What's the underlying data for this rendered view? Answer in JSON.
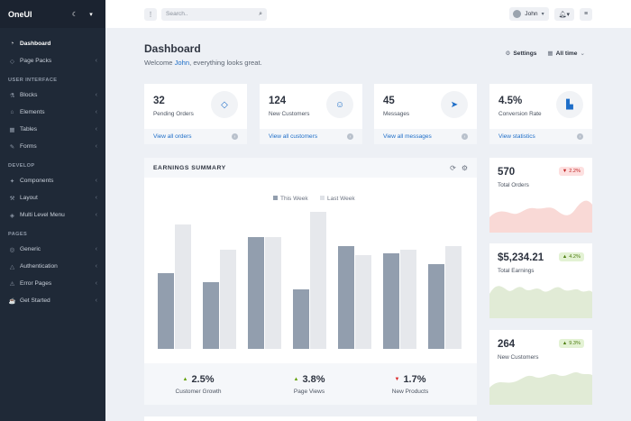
{
  "app": {
    "brand": "OneUI"
  },
  "sidebar": {
    "items_top": [
      {
        "label": "Dashboard",
        "icon": "speedometer-icon",
        "active": true
      },
      {
        "label": "Page Packs",
        "icon": "layers-icon"
      }
    ],
    "section_ui": "USER INTERFACE",
    "items_ui": [
      {
        "label": "Blocks",
        "icon": "flask-icon"
      },
      {
        "label": "Elements",
        "icon": "rocket-icon"
      },
      {
        "label": "Tables",
        "icon": "table-icon"
      },
      {
        "label": "Forms",
        "icon": "form-icon"
      }
    ],
    "section_dev": "DEVELOP",
    "items_dev": [
      {
        "label": "Components",
        "icon": "wand-icon"
      },
      {
        "label": "Layout",
        "icon": "wrench-icon"
      },
      {
        "label": "Multi Level Menu",
        "icon": "puzzle-icon"
      }
    ],
    "section_pages": "PAGES",
    "items_pages": [
      {
        "label": "Generic",
        "icon": "layer-group-icon"
      },
      {
        "label": "Authentication",
        "icon": "lock-icon"
      },
      {
        "label": "Error Pages",
        "icon": "warning-icon"
      },
      {
        "label": "Get Started",
        "icon": "coffee-icon"
      }
    ]
  },
  "header": {
    "search_placeholder": "Search..",
    "user_name": "John"
  },
  "page": {
    "title": "Dashboard",
    "welcome_prefix": "Welcome ",
    "welcome_name": "John",
    "welcome_suffix": ", everything looks great.",
    "settings_label": "Settings",
    "range_label": "All time"
  },
  "stats": [
    {
      "value": "32",
      "label": "Pending Orders",
      "link": "View all orders",
      "icon": "gem-icon"
    },
    {
      "value": "124",
      "label": "New Customers",
      "link": "View all customers",
      "icon": "user-circle-icon"
    },
    {
      "value": "45",
      "label": "Messages",
      "link": "View all messages",
      "icon": "paper-plane-icon"
    },
    {
      "value": "4.5%",
      "label": "Conversion Rate",
      "link": "View statistics",
      "icon": "chart-bar-icon"
    }
  ],
  "earnings": {
    "title": "EARNINGS SUMMARY",
    "kpis": [
      {
        "value": "2.5%",
        "label": "Customer Growth",
        "trend": "up"
      },
      {
        "value": "3.8%",
        "label": "Page Views",
        "trend": "up"
      },
      {
        "value": "1.7%",
        "label": "New Products",
        "trend": "down"
      }
    ]
  },
  "chart_data": {
    "type": "bar",
    "categories": [
      "",
      "",
      "",
      "",
      "",
      "",
      ""
    ],
    "series": [
      {
        "name": "This Week",
        "color": "#929eae",
        "values": [
          42,
          37,
          62,
          33,
          57,
          53,
          47
        ]
      },
      {
        "name": "Last Week",
        "color": "#e6e8ec",
        "values": [
          69,
          55,
          62,
          76,
          52,
          55,
          57
        ]
      }
    ],
    "ylim": [
      0,
      85
    ],
    "legend": "top-center",
    "grid": false
  },
  "side_cards": [
    {
      "value": "570",
      "label": "Total Orders",
      "badge": "2.2%",
      "trend": "down",
      "color": "#f9d9d6"
    },
    {
      "value": "$5,234.21",
      "label": "Total Earnings",
      "badge": "4.2%",
      "trend": "up",
      "color": "#e1ebd6"
    },
    {
      "value": "264",
      "label": "New Customers",
      "badge": "9.3%",
      "trend": "up",
      "color": "#e1ebd6"
    }
  ]
}
